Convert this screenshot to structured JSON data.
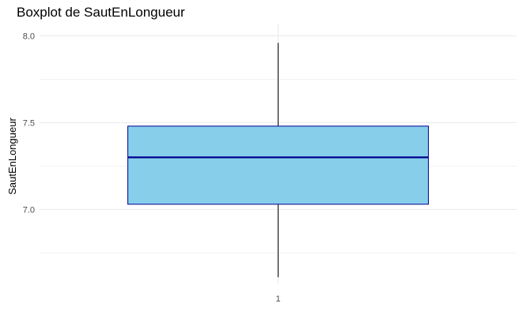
{
  "chart_data": {
    "type": "box",
    "title": "Boxplot de SautEnLongueur",
    "xlabel": "",
    "ylabel": "SautEnLongueur",
    "categories": [
      "1"
    ],
    "ylim": [
      6.57,
      8.07
    ],
    "y_ticks": [
      7.0,
      7.5,
      8.0
    ],
    "y_tick_labels": [
      "7.0",
      "7.5",
      "8.0"
    ],
    "y_minor_gridlines": [
      6.75,
      7.25,
      7.75
    ],
    "grid": true,
    "legend": "none",
    "boxes": [
      {
        "category": "1",
        "min": 6.61,
        "q1": 7.03,
        "median": 7.3,
        "q3": 7.48,
        "max": 7.96
      }
    ],
    "colors": {
      "box_fill": "#87CEEB",
      "box_outline": "#00008B",
      "median_line": "#00008B",
      "whisker": "#000000",
      "grid": "#EBEBEB"
    }
  }
}
